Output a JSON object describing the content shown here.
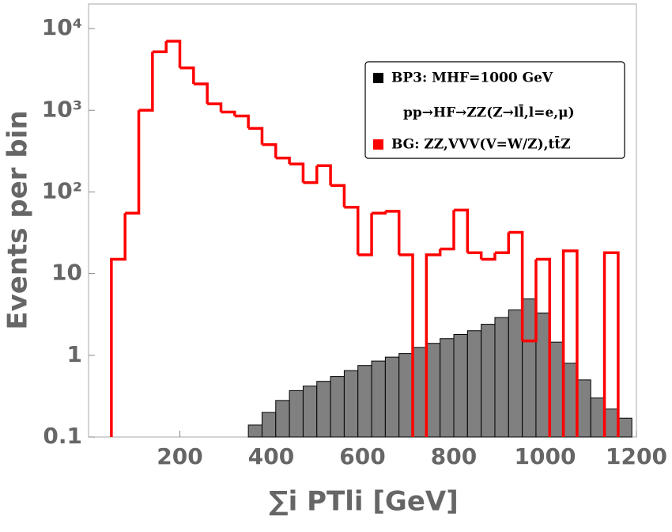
{
  "chart_data": {
    "type": "histogram",
    "x_label": "∑i PTli [GeV]",
    "y_label": "Events per bin",
    "bins": [
      50,
      80,
      110,
      140,
      170,
      200,
      230,
      260,
      290,
      320,
      350,
      380,
      410,
      440,
      470,
      500,
      530,
      560,
      590,
      620,
      650,
      680,
      710,
      740,
      770,
      800,
      830,
      860,
      890,
      920,
      950,
      980,
      1010,
      1040,
      1070,
      1100,
      1130,
      1160,
      1190
    ],
    "series": [
      {
        "name": "BP3: MHF=1000 GeV",
        "color": "#808080",
        "values": [
          null,
          null,
          null,
          null,
          null,
          null,
          null,
          null,
          null,
          null,
          0.14,
          0.2,
          0.28,
          0.37,
          0.42,
          0.48,
          0.55,
          0.65,
          0.75,
          0.85,
          0.95,
          1.05,
          1.25,
          1.4,
          1.6,
          1.8,
          2.0,
          2.4,
          2.9,
          3.6,
          4.9,
          3.3,
          1.45,
          0.8,
          0.5,
          0.3,
          0.22,
          0.17
        ]
      },
      {
        "name": "BG: ZZ,VVV(V=W/Z),tt̄Z",
        "color": "#ff0000",
        "values": [
          15,
          55,
          1000,
          5200,
          7000,
          3300,
          2100,
          1200,
          950,
          850,
          600,
          380,
          260,
          220,
          130,
          210,
          120,
          65,
          17,
          55,
          58,
          17,
          null,
          17,
          20,
          60,
          18,
          15,
          18,
          32,
          1.5,
          15,
          null,
          19,
          null,
          null,
          18,
          null
        ]
      }
    ],
    "annotation": "pp→HF→ZZ(Z→ll̄,l=e,μ)",
    "xlim": [
      0,
      1200
    ],
    "xticks": [
      200,
      400,
      600,
      800,
      1000,
      1200
    ],
    "ylim": [
      0.1,
      20000
    ],
    "yticks": [
      0.1,
      1,
      10,
      {
        "value": 100,
        "label": "10²"
      },
      {
        "value": 1000,
        "label": "10³"
      },
      {
        "value": 10000,
        "label": "10⁴"
      }
    ],
    "log_y": true,
    "legend": "upper right"
  }
}
